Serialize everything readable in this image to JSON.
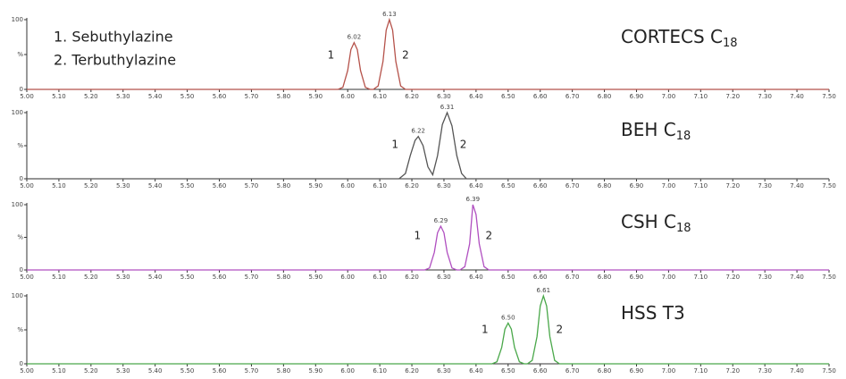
{
  "chart_data": [
    {
      "type": "line",
      "title": {
        "text": "CORTECS C",
        "subscript": "18"
      },
      "color": "#b5524a",
      "annotations": [
        "1. Sebuthylazine",
        "2. Terbuthylazine"
      ],
      "x": [
        5.0,
        5.97,
        5.985,
        6.0,
        6.01,
        6.02,
        6.03,
        6.04,
        6.055,
        6.07,
        6.08,
        6.095,
        6.11,
        6.12,
        6.13,
        6.14,
        6.15,
        6.165,
        6.18,
        7.5
      ],
      "values": [
        0,
        0,
        3,
        27,
        57,
        67,
        57,
        27,
        3,
        0,
        0,
        5,
        40,
        85,
        100,
        85,
        40,
        5,
        0,
        0
      ],
      "peaks": [
        {
          "x": 6.02,
          "y": 67,
          "label": "6.02",
          "number": "1"
        },
        {
          "x": 6.13,
          "y": 100,
          "label": "6.13",
          "number": "2"
        }
      ],
      "xlim": [
        5.0,
        7.5
      ],
      "ylim": [
        0,
        100
      ],
      "yticks": [
        0,
        {
          "value": 50,
          "label": "%"
        },
        100
      ],
      "xticks": [
        {
          "value": 5.0,
          "label": "5.00"
        },
        {
          "value": 5.1,
          "label": "5.10"
        },
        {
          "value": 5.2,
          "label": "5.20"
        },
        {
          "value": 5.3,
          "label": "5.30"
        },
        {
          "value": 5.4,
          "label": "5.40"
        },
        {
          "value": 5.5,
          "label": "5.50"
        },
        {
          "value": 5.6,
          "label": "5.60"
        },
        {
          "value": 5.7,
          "label": "5.70"
        },
        {
          "value": 5.8,
          "label": "5.80"
        },
        {
          "value": 5.9,
          "label": "5.90"
        },
        {
          "value": 6.0,
          "label": "6.00"
        },
        {
          "value": 6.1,
          "label": "6.10"
        },
        {
          "value": 6.2,
          "label": "6.20"
        },
        {
          "value": 6.3,
          "label": "6.30"
        },
        {
          "value": 6.4,
          "label": "6.40"
        },
        {
          "value": 6.5,
          "label": "6.50"
        },
        {
          "value": 6.6,
          "label": "6.60"
        },
        {
          "value": 6.7,
          "label": "6.70"
        },
        {
          "value": 6.8,
          "label": "6.80"
        },
        {
          "value": 6.9,
          "label": "6.90"
        },
        {
          "value": 7.0,
          "label": "7.00"
        },
        {
          "value": 7.1,
          "label": "7.10"
        },
        {
          "value": 7.2,
          "label": "7.20"
        },
        {
          "value": 7.3,
          "label": "7.30"
        },
        {
          "value": 7.4,
          "label": "7.40"
        },
        {
          "value": 7.5,
          "label": "7.50"
        }
      ]
    },
    {
      "type": "line",
      "title": {
        "text": "BEH C",
        "subscript": "18"
      },
      "color": "#555555",
      "x": [
        5.0,
        6.16,
        6.18,
        6.195,
        6.21,
        6.22,
        6.235,
        6.25,
        6.265,
        6.28,
        6.295,
        6.31,
        6.325,
        6.34,
        6.355,
        6.37,
        7.5
      ],
      "values": [
        0,
        0,
        8,
        35,
        58,
        64,
        50,
        18,
        6,
        35,
        82,
        100,
        80,
        35,
        8,
        0,
        0
      ],
      "peaks": [
        {
          "x": 6.22,
          "y": 64,
          "label": "6.22",
          "number": "1"
        },
        {
          "x": 6.31,
          "y": 100,
          "label": "6.31",
          "number": "2"
        }
      ],
      "xlim": [
        5.0,
        7.5
      ],
      "ylim": [
        0,
        100
      ],
      "yticks": [
        0,
        {
          "value": 50,
          "label": "%"
        },
        100
      ],
      "xticks": [
        {
          "value": 5.0,
          "label": "5.00"
        },
        {
          "value": 5.1,
          "label": "5.10"
        },
        {
          "value": 5.2,
          "label": "5.20"
        },
        {
          "value": 5.3,
          "label": "5.30"
        },
        {
          "value": 5.4,
          "label": "5.40"
        },
        {
          "value": 5.5,
          "label": "5.50"
        },
        {
          "value": 5.6,
          "label": "5.60"
        },
        {
          "value": 5.7,
          "label": "5.70"
        },
        {
          "value": 5.8,
          "label": "5.80"
        },
        {
          "value": 5.9,
          "label": "5.90"
        },
        {
          "value": 6.0,
          "label": "6.00"
        },
        {
          "value": 6.1,
          "label": "6.10"
        },
        {
          "value": 6.2,
          "label": "6.20"
        },
        {
          "value": 6.3,
          "label": "6.30"
        },
        {
          "value": 6.4,
          "label": "6.40"
        },
        {
          "value": 6.5,
          "label": "6.50"
        },
        {
          "value": 6.6,
          "label": "6.60"
        },
        {
          "value": 6.7,
          "label": "6.70"
        },
        {
          "value": 6.8,
          "label": "6.80"
        },
        {
          "value": 6.9,
          "label": "6.90"
        },
        {
          "value": 7.0,
          "label": "7.00"
        },
        {
          "value": 7.1,
          "label": "7.10"
        },
        {
          "value": 7.2,
          "label": "7.20"
        },
        {
          "value": 7.3,
          "label": "7.30"
        },
        {
          "value": 7.4,
          "label": "7.40"
        },
        {
          "value": 7.5,
          "label": "7.50"
        }
      ]
    },
    {
      "type": "line",
      "title": {
        "text": "CSH C",
        "subscript": "18"
      },
      "color": "#b04fc0",
      "x": [
        5.0,
        6.24,
        6.255,
        6.27,
        6.28,
        6.29,
        6.3,
        6.31,
        6.325,
        6.34,
        6.35,
        6.365,
        6.38,
        6.39,
        6.4,
        6.41,
        6.425,
        6.44,
        7.5
      ],
      "values": [
        0,
        0,
        3,
        27,
        57,
        67,
        57,
        27,
        3,
        0,
        0,
        5,
        40,
        100,
        85,
        40,
        5,
        0,
        0
      ],
      "peaks": [
        {
          "x": 6.29,
          "y": 67,
          "label": "6.29",
          "number": "1"
        },
        {
          "x": 6.39,
          "y": 100,
          "label": "6.39",
          "number": "2"
        }
      ],
      "xlim": [
        5.0,
        7.5
      ],
      "ylim": [
        0,
        100
      ],
      "yticks": [
        0,
        {
          "value": 50,
          "label": "%"
        },
        100
      ],
      "xticks": [
        {
          "value": 5.0,
          "label": "5.00"
        },
        {
          "value": 5.1,
          "label": "5.10"
        },
        {
          "value": 5.2,
          "label": "5.20"
        },
        {
          "value": 5.3,
          "label": "5.30"
        },
        {
          "value": 5.4,
          "label": "5.40"
        },
        {
          "value": 5.5,
          "label": "5.50"
        },
        {
          "value": 5.6,
          "label": "5.60"
        },
        {
          "value": 5.7,
          "label": "5.70"
        },
        {
          "value": 5.8,
          "label": "5.80"
        },
        {
          "value": 5.9,
          "label": "5.90"
        },
        {
          "value": 6.0,
          "label": "6.00"
        },
        {
          "value": 6.1,
          "label": "6.10"
        },
        {
          "value": 6.2,
          "label": "6.20"
        },
        {
          "value": 6.3,
          "label": "6.30"
        },
        {
          "value": 6.4,
          "label": "6.40"
        },
        {
          "value": 6.5,
          "label": "6.50"
        },
        {
          "value": 6.6,
          "label": "6.60"
        },
        {
          "value": 6.7,
          "label": "6.70"
        },
        {
          "value": 6.8,
          "label": "6.80"
        },
        {
          "value": 6.9,
          "label": "6.90"
        },
        {
          "value": 7.0,
          "label": "7.00"
        },
        {
          "value": 7.1,
          "label": "7.10"
        },
        {
          "value": 7.2,
          "label": "7.20"
        },
        {
          "value": 7.3,
          "label": "7.30"
        },
        {
          "value": 7.4,
          "label": "7.40"
        },
        {
          "value": 7.5,
          "label": "7.50"
        }
      ]
    },
    {
      "type": "line",
      "title": {
        "text": "HSS T3"
      },
      "color": "#4aa84a",
      "x": [
        5.0,
        6.45,
        6.465,
        6.48,
        6.49,
        6.5,
        6.51,
        6.52,
        6.535,
        6.55,
        6.56,
        6.575,
        6.59,
        6.6,
        6.61,
        6.62,
        6.63,
        6.645,
        6.66,
        7.5
      ],
      "values": [
        0,
        0,
        3,
        24,
        51,
        60,
        51,
        24,
        3,
        0,
        0,
        5,
        40,
        85,
        100,
        85,
        40,
        5,
        0,
        0
      ],
      "peaks": [
        {
          "x": 6.5,
          "y": 60,
          "label": "6.50",
          "number": "1"
        },
        {
          "x": 6.61,
          "y": 100,
          "label": "6.61",
          "number": "2"
        }
      ],
      "xlim": [
        5.0,
        7.5
      ],
      "ylim": [
        0,
        100
      ],
      "yticks": [
        0,
        {
          "value": 50,
          "label": "%"
        },
        100
      ],
      "xticks": [
        {
          "value": 5.0,
          "label": "5.00"
        },
        {
          "value": 5.1,
          "label": "5.10"
        },
        {
          "value": 5.2,
          "label": "5.20"
        },
        {
          "value": 5.3,
          "label": "5.30"
        },
        {
          "value": 5.4,
          "label": "5.40"
        },
        {
          "value": 5.5,
          "label": "5.50"
        },
        {
          "value": 5.6,
          "label": "5.60"
        },
        {
          "value": 5.7,
          "label": "5.70"
        },
        {
          "value": 5.8,
          "label": "5.80"
        },
        {
          "value": 5.9,
          "label": "5.90"
        },
        {
          "value": 6.0,
          "label": "6.00"
        },
        {
          "value": 6.1,
          "label": "6.10"
        },
        {
          "value": 6.2,
          "label": "6.20"
        },
        {
          "value": 6.3,
          "label": "6.30"
        },
        {
          "value": 6.4,
          "label": "6.40"
        },
        {
          "value": 6.5,
          "label": "6.50"
        },
        {
          "value": 6.6,
          "label": "6.60"
        },
        {
          "value": 6.7,
          "label": "6.70"
        },
        {
          "value": 6.8,
          "label": "6.80"
        },
        {
          "value": 6.9,
          "label": "6.90"
        },
        {
          "value": 7.0,
          "label": "7.00"
        },
        {
          "value": 7.1,
          "label": "7.10"
        },
        {
          "value": 7.2,
          "label": "7.20"
        },
        {
          "value": 7.3,
          "label": "7.30"
        },
        {
          "value": 7.4,
          "label": "7.40"
        },
        {
          "value": 7.5,
          "label": "7.50"
        }
      ]
    }
  ]
}
